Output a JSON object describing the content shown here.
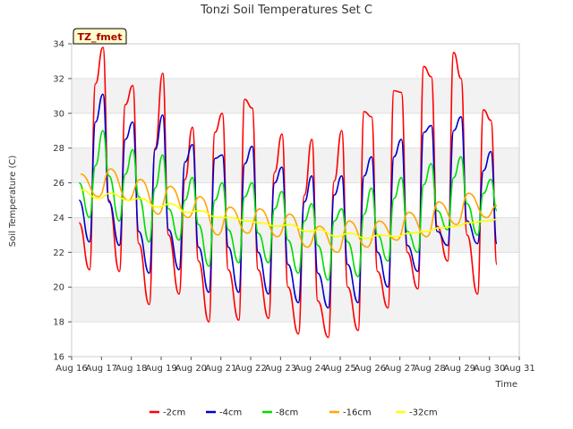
{
  "chart_data": {
    "type": "line",
    "title": "Tonzi Soil Temperatures Set C",
    "xlabel": "Time",
    "ylabel": "Soil Temperature (C)",
    "ylim": [
      16,
      34
    ],
    "yticks": [
      16,
      18,
      20,
      22,
      24,
      26,
      28,
      30,
      32,
      34
    ],
    "xlim": [
      16,
      31
    ],
    "xticks": [
      "Aug 16",
      "Aug 17",
      "Aug 18",
      "Aug 19",
      "Aug 20",
      "Aug 21",
      "Aug 22",
      "Aug 23",
      "Aug 24",
      "Aug 25",
      "Aug 26",
      "Aug 27",
      "Aug 28",
      "Aug 29",
      "Aug 30",
      "Aug 31"
    ],
    "grid": "horizontal bands",
    "legend_position": "bottom",
    "badge": "TZ_fmet",
    "x_unit": "day of August",
    "series": [
      {
        "name": "-2cm",
        "color": "#ff0000",
        "x": [
          16.25,
          16.6,
          16.8,
          17.05,
          17.25,
          17.6,
          17.8,
          18.05,
          18.25,
          18.6,
          18.8,
          19.05,
          19.25,
          19.6,
          19.8,
          20.05,
          20.25,
          20.6,
          20.8,
          21.05,
          21.25,
          21.6,
          21.8,
          22.05,
          22.25,
          22.6,
          22.8,
          23.05,
          23.25,
          23.6,
          23.8,
          24.05,
          24.25,
          24.6,
          24.8,
          25.05,
          25.25,
          25.6,
          25.8,
          26.05,
          26.25,
          26.6,
          26.8,
          27.05,
          27.25,
          27.6,
          27.8,
          28.05,
          28.25,
          28.6,
          28.8,
          29.05,
          29.25,
          29.6,
          29.8,
          30.05,
          30.25
        ],
        "y": [
          23.7,
          21.0,
          31.7,
          33.8,
          25.0,
          20.9,
          30.5,
          31.6,
          22.5,
          19.0,
          28.0,
          32.3,
          23.0,
          19.6,
          26.2,
          29.2,
          21.5,
          18.0,
          28.9,
          30.0,
          21.0,
          18.1,
          30.8,
          30.3,
          21.0,
          18.2,
          26.6,
          28.8,
          20.0,
          17.3,
          25.3,
          28.5,
          19.2,
          17.1,
          26.1,
          29.0,
          20.0,
          17.5,
          30.1,
          29.8,
          20.9,
          18.8,
          31.3,
          31.2,
          22.0,
          19.9,
          32.7,
          32.1,
          23.5,
          21.5,
          33.5,
          32.0,
          23.0,
          19.6,
          30.2,
          29.6,
          21.3
        ]
      },
      {
        "name": "-4cm",
        "color": "#0000cc",
        "x": [
          16.25,
          16.6,
          16.8,
          17.05,
          17.25,
          17.6,
          17.8,
          18.05,
          18.25,
          18.6,
          18.8,
          19.05,
          19.25,
          19.6,
          19.8,
          20.05,
          20.25,
          20.6,
          20.8,
          21.05,
          21.25,
          21.6,
          21.8,
          22.05,
          22.25,
          22.6,
          22.8,
          23.05,
          23.25,
          23.6,
          23.8,
          24.05,
          24.25,
          24.6,
          24.8,
          25.05,
          25.25,
          25.6,
          25.8,
          26.05,
          26.25,
          26.6,
          26.8,
          27.05,
          27.25,
          27.6,
          27.8,
          28.05,
          28.25,
          28.6,
          28.8,
          29.05,
          29.25,
          29.6,
          29.8,
          30.05,
          30.25
        ],
        "y": [
          25.0,
          22.6,
          29.5,
          31.1,
          24.9,
          22.4,
          28.5,
          29.5,
          23.2,
          20.8,
          27.9,
          29.9,
          23.3,
          21.0,
          27.2,
          28.2,
          22.3,
          19.7,
          27.4,
          27.6,
          22.3,
          19.7,
          27.1,
          28.1,
          22.0,
          19.6,
          26.0,
          26.9,
          21.3,
          19.1,
          24.9,
          26.4,
          20.8,
          18.8,
          25.3,
          26.4,
          21.3,
          19.1,
          26.4,
          27.5,
          22.0,
          20.0,
          27.5,
          28.5,
          22.4,
          20.9,
          28.9,
          29.3,
          23.2,
          22.4,
          29.0,
          29.8,
          23.8,
          22.5,
          26.7,
          27.8,
          22.5
        ]
      },
      {
        "name": "-8cm",
        "color": "#00dd00",
        "x": [
          16.25,
          16.6,
          16.8,
          17.05,
          17.25,
          17.6,
          17.8,
          18.05,
          18.25,
          18.6,
          18.8,
          19.05,
          19.25,
          19.6,
          19.8,
          20.05,
          20.25,
          20.6,
          20.8,
          21.05,
          21.25,
          21.6,
          21.8,
          22.05,
          22.25,
          22.6,
          22.8,
          23.05,
          23.25,
          23.6,
          23.8,
          24.05,
          24.25,
          24.6,
          24.8,
          25.05,
          25.25,
          25.6,
          25.8,
          26.05,
          26.25,
          26.6,
          26.8,
          27.05,
          27.25,
          27.6,
          27.8,
          28.05,
          28.25,
          28.6,
          28.8,
          29.05,
          29.25,
          29.6,
          29.8,
          30.05,
          30.25
        ],
        "y": [
          26.0,
          24.0,
          27.0,
          29.0,
          26.4,
          23.8,
          26.5,
          27.9,
          25.2,
          22.6,
          25.7,
          27.6,
          24.5,
          22.7,
          25.0,
          26.3,
          23.6,
          21.2,
          25.0,
          26.0,
          23.3,
          21.4,
          25.2,
          26.0,
          23.1,
          21.4,
          24.5,
          25.5,
          22.7,
          20.8,
          23.8,
          24.8,
          22.4,
          20.4,
          23.8,
          24.5,
          22.6,
          20.6,
          24.2,
          25.7,
          23.0,
          21.5,
          25.1,
          26.3,
          23.2,
          22.0,
          25.9,
          27.1,
          24.4,
          23.3,
          26.3,
          27.5,
          24.8,
          23.0,
          25.4,
          26.2,
          24.4
        ]
      },
      {
        "name": "-16cm",
        "color": "#ffa500",
        "x": [
          16.3,
          16.9,
          17.3,
          17.9,
          18.3,
          18.9,
          19.3,
          19.9,
          20.3,
          20.9,
          21.3,
          21.9,
          22.3,
          22.9,
          23.3,
          23.9,
          24.3,
          24.9,
          25.3,
          25.9,
          26.3,
          26.9,
          27.3,
          27.9,
          28.3,
          28.9,
          29.3,
          29.9,
          30.25
        ],
        "y": [
          26.5,
          25.2,
          26.8,
          25.0,
          26.2,
          24.2,
          25.8,
          24.0,
          25.2,
          23.0,
          24.6,
          23.1,
          24.5,
          22.9,
          24.2,
          22.3,
          23.5,
          22.0,
          23.8,
          22.3,
          23.8,
          22.7,
          24.3,
          22.9,
          24.9,
          23.6,
          25.4,
          24.0,
          24.7
        ]
      },
      {
        "name": "-32cm",
        "color": "#ffff00",
        "x": [
          16.3,
          16.9,
          17.3,
          17.9,
          18.3,
          18.9,
          19.3,
          19.9,
          20.3,
          20.9,
          21.3,
          21.9,
          22.3,
          22.9,
          23.3,
          23.9,
          24.3,
          24.9,
          25.3,
          25.9,
          26.3,
          26.9,
          27.3,
          27.9,
          28.3,
          28.9,
          29.3,
          29.9,
          30.25
        ],
        "y": [
          25.6,
          25.1,
          25.4,
          25.0,
          25.1,
          24.6,
          24.8,
          24.3,
          24.4,
          24.0,
          24.0,
          23.8,
          23.7,
          23.5,
          23.6,
          23.2,
          23.3,
          22.9,
          23.1,
          22.8,
          23.0,
          22.9,
          23.1,
          23.2,
          23.4,
          23.5,
          23.7,
          23.8,
          23.9
        ]
      }
    ]
  }
}
